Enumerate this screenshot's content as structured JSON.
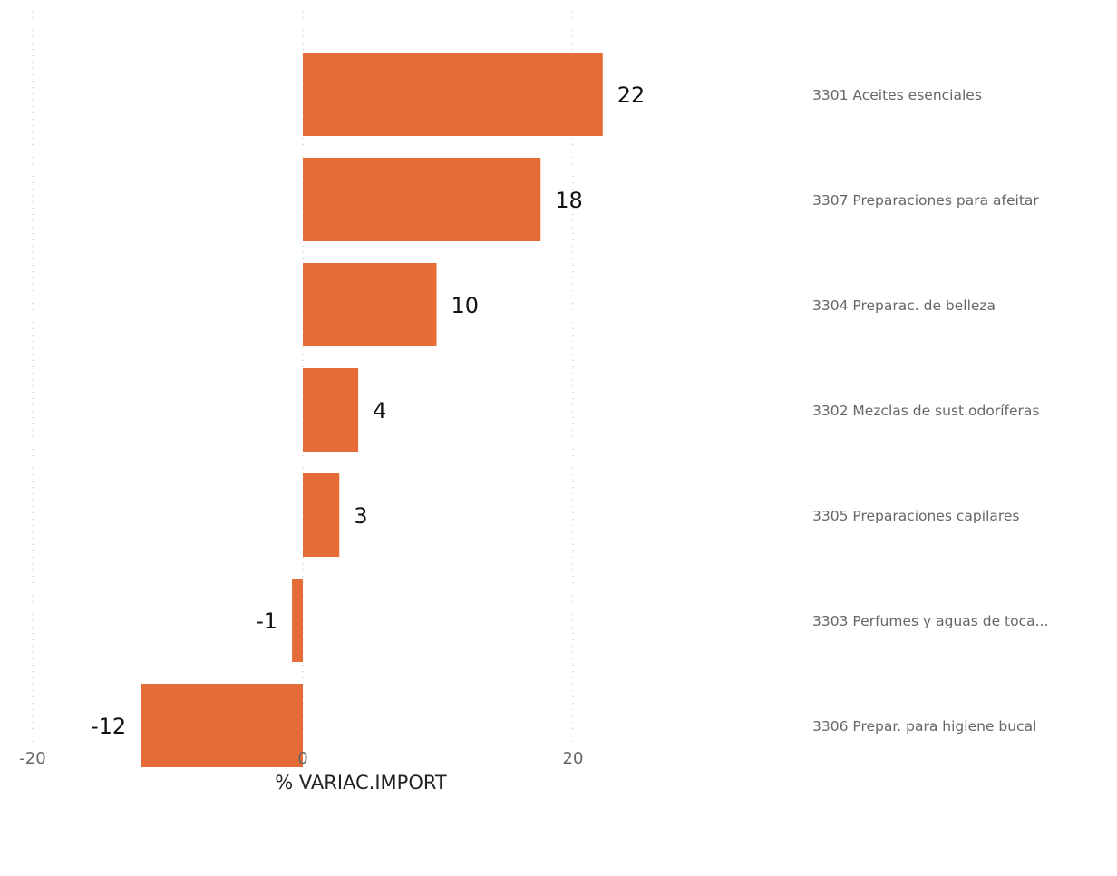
{
  "chart_data": {
    "type": "bar",
    "orientation": "horizontal",
    "categories": [
      "3301 Aceites esenciales",
      "3307 Preparaciones para afeitar",
      "3304 Preparac. de belleza",
      "3302 Mezclas de sust.odoríferas",
      "3305 Preparaciones capilares",
      "3303 Perfumes y aguas de toca...",
      "3306 Prepar. para higiene bucal"
    ],
    "values": [
      22.2,
      17.6,
      9.9,
      4.1,
      2.7,
      -0.8,
      -12
    ],
    "data_labels": [
      "22",
      "18",
      "10",
      "4",
      "3",
      "-1",
      "-12"
    ],
    "xlabel": "% VARIAC.IMPORT",
    "xlim": [
      -20,
      20
    ],
    "x_ticks": [
      -20,
      0,
      20
    ],
    "x_tick_labels": [
      "-20",
      "0",
      "20"
    ],
    "grid": true,
    "bar_color": "#e66c37",
    "category_label_placement": "right"
  }
}
